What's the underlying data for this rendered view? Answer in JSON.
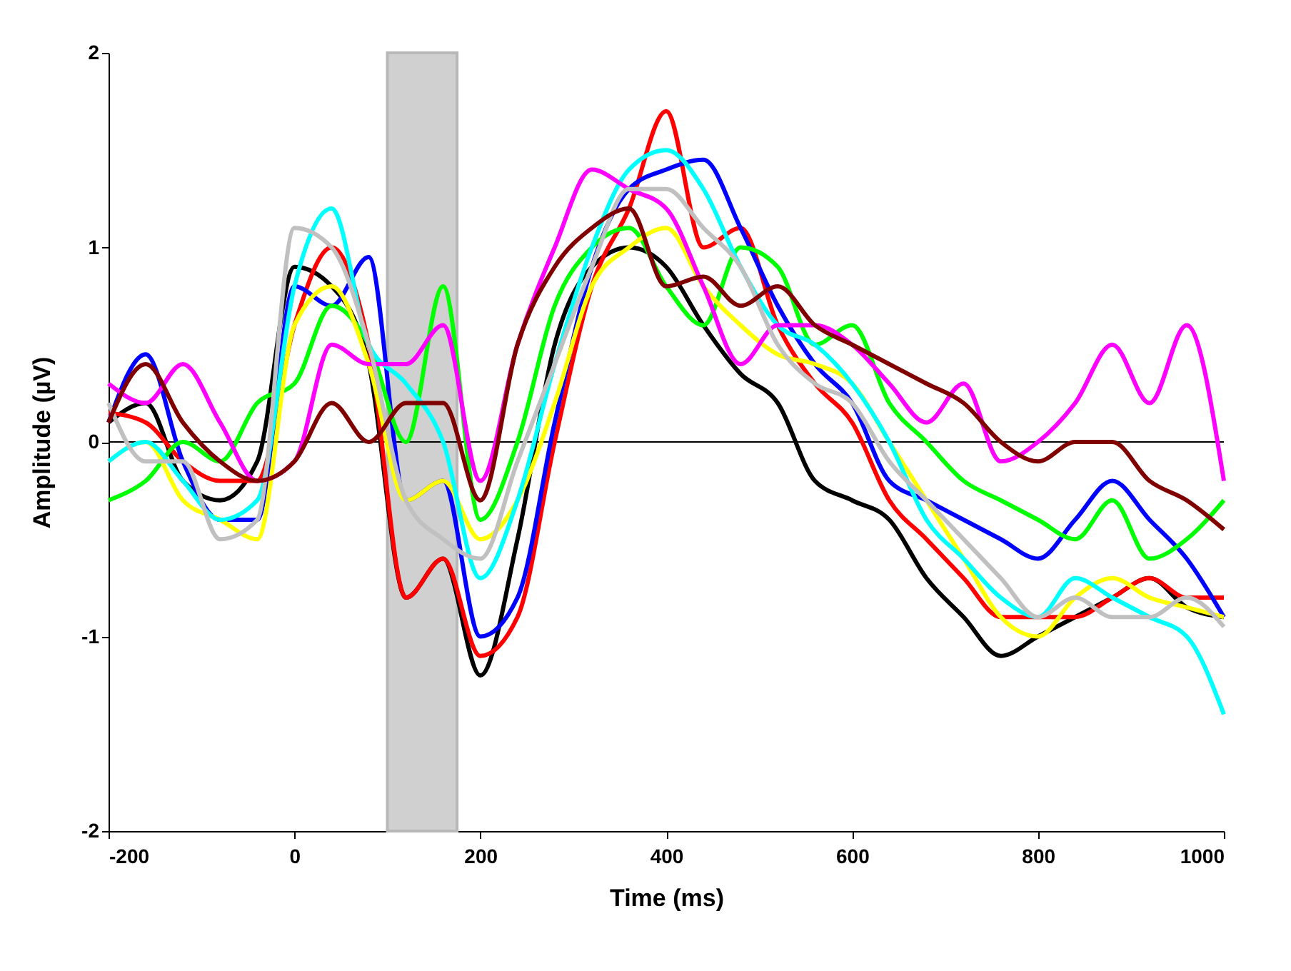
{
  "chart_data": {
    "type": "line",
    "xlabel": "Time (ms)",
    "ylabel": "Amplitude (µV)",
    "xlim": [
      -200,
      1000
    ],
    "ylim": [
      -2,
      2
    ],
    "xticks": [
      -200,
      0,
      200,
      400,
      600,
      800,
      1000
    ],
    "yticks": [
      -2,
      -1,
      0,
      1,
      2
    ],
    "x": [
      -200,
      -160,
      -120,
      -80,
      -40,
      0,
      40,
      80,
      120,
      160,
      200,
      240,
      280,
      320,
      360,
      400,
      440,
      480,
      520,
      560,
      600,
      640,
      680,
      720,
      760,
      800,
      840,
      880,
      920,
      960,
      1000
    ],
    "bands": [
      {
        "axis": "x",
        "from": 100,
        "to": 175,
        "color": "#d0d0d0"
      }
    ],
    "ref_lines": [
      {
        "axis": "y",
        "value": 0,
        "color": "#000000"
      }
    ],
    "series": [
      {
        "color": "#000000",
        "values": [
          0.1,
          0.2,
          -0.2,
          -0.3,
          -0.1,
          0.9,
          0.8,
          0.4,
          -0.8,
          -0.6,
          -1.2,
          -0.5,
          0.5,
          0.9,
          1.0,
          0.9,
          0.6,
          0.35,
          0.2,
          -0.2,
          -0.3,
          -0.4,
          -0.7,
          -0.9,
          -1.1,
          -1.0,
          -0.9,
          -0.8,
          -0.7,
          -0.85,
          -0.9
        ]
      },
      {
        "color": "#ff0000",
        "values": [
          0.15,
          0.1,
          -0.1,
          -0.2,
          -0.2,
          0.6,
          1.0,
          0.5,
          -0.8,
          -0.6,
          -1.1,
          -0.9,
          0.0,
          0.8,
          1.2,
          1.7,
          1.0,
          1.1,
          0.6,
          0.3,
          0.1,
          -0.3,
          -0.5,
          -0.7,
          -0.9,
          -0.9,
          -0.9,
          -0.8,
          -0.7,
          -0.8,
          -0.8
        ]
      },
      {
        "color": "#0000ff",
        "values": [
          0.1,
          0.45,
          -0.1,
          -0.4,
          -0.4,
          0.8,
          0.7,
          0.95,
          -0.3,
          -0.2,
          -1.0,
          -0.8,
          0.1,
          0.9,
          1.3,
          1.4,
          1.45,
          1.1,
          0.7,
          0.4,
          0.2,
          -0.2,
          -0.3,
          -0.4,
          -0.5,
          -0.6,
          -0.4,
          -0.2,
          -0.4,
          -0.6,
          -0.9
        ]
      },
      {
        "color": "#00ff00",
        "values": [
          -0.3,
          -0.2,
          0.0,
          -0.1,
          0.2,
          0.3,
          0.7,
          0.5,
          0.0,
          0.8,
          -0.4,
          0.0,
          0.7,
          1.0,
          1.1,
          0.8,
          0.6,
          1.0,
          0.9,
          0.5,
          0.6,
          0.2,
          0.0,
          -0.2,
          -0.3,
          -0.4,
          -0.5,
          -0.3,
          -0.6,
          -0.5,
          -0.3
        ]
      },
      {
        "color": "#ffff00",
        "values": [
          -0.1,
          0.0,
          -0.3,
          -0.4,
          -0.5,
          0.6,
          0.8,
          0.4,
          -0.3,
          -0.2,
          -0.5,
          -0.3,
          0.2,
          0.8,
          1.0,
          1.1,
          0.8,
          0.6,
          0.45,
          0.4,
          0.3,
          0.0,
          -0.3,
          -0.6,
          -0.9,
          -1.0,
          -0.8,
          -0.7,
          -0.8,
          -0.85,
          -0.9
        ]
      },
      {
        "color": "#00ffff",
        "values": [
          -0.1,
          0.0,
          -0.2,
          -0.4,
          -0.3,
          0.8,
          1.2,
          0.5,
          0.3,
          0.0,
          -0.7,
          -0.3,
          0.4,
          1.0,
          1.4,
          1.5,
          1.3,
          0.9,
          0.6,
          0.5,
          0.3,
          0.0,
          -0.4,
          -0.6,
          -0.8,
          -0.9,
          -0.7,
          -0.8,
          -0.9,
          -1.0,
          -1.4
        ]
      },
      {
        "color": "#ff00ff",
        "values": [
          0.3,
          0.2,
          0.4,
          0.1,
          -0.2,
          -0.1,
          0.5,
          0.4,
          0.4,
          0.6,
          -0.2,
          0.5,
          1.0,
          1.4,
          1.3,
          1.2,
          0.8,
          0.4,
          0.6,
          0.6,
          0.5,
          0.3,
          0.1,
          0.3,
          -0.1,
          0.0,
          0.2,
          0.5,
          0.2,
          0.6,
          -0.2
        ]
      },
      {
        "color": "#c0c0c0",
        "values": [
          0.2,
          -0.1,
          -0.1,
          -0.5,
          -0.4,
          1.1,
          1.0,
          0.5,
          -0.3,
          -0.5,
          -0.6,
          -0.1,
          0.4,
          0.9,
          1.3,
          1.3,
          1.1,
          0.9,
          0.5,
          0.3,
          0.2,
          -0.1,
          -0.3,
          -0.5,
          -0.7,
          -0.9,
          -0.8,
          -0.9,
          -0.9,
          -0.8,
          -0.95
        ]
      },
      {
        "color": "#800000",
        "values": [
          0.1,
          0.4,
          0.1,
          -0.1,
          -0.2,
          -0.1,
          0.2,
          0.0,
          0.2,
          0.2,
          -0.3,
          0.5,
          0.9,
          1.1,
          1.2,
          0.8,
          0.85,
          0.7,
          0.8,
          0.6,
          0.5,
          0.4,
          0.3,
          0.2,
          0.0,
          -0.1,
          0.0,
          0.0,
          -0.2,
          -0.3,
          -0.45
        ]
      }
    ]
  }
}
